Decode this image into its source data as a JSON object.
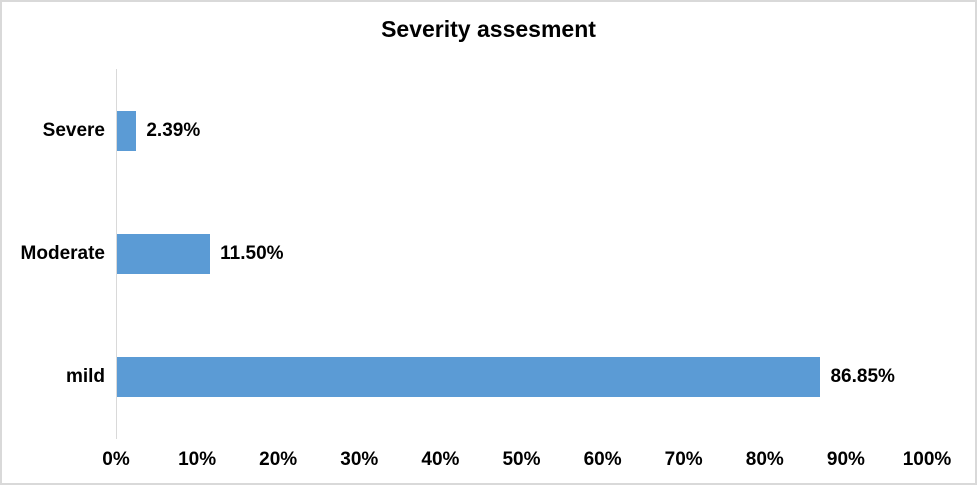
{
  "chart_data": {
    "type": "bar",
    "orientation": "horizontal",
    "title": "Severity assesment",
    "categories": [
      "Severe",
      "Moderate",
      "mild"
    ],
    "values": [
      2.39,
      11.5,
      86.85
    ],
    "data_labels": [
      "2.39%",
      "11.50%",
      "86.85%"
    ],
    "xlim": [
      0,
      100
    ],
    "x_ticks": [
      {
        "value": 0,
        "label": "0%"
      },
      {
        "value": 10,
        "label": "10%"
      },
      {
        "value": 20,
        "label": "20%"
      },
      {
        "value": 30,
        "label": "30%"
      },
      {
        "value": 40,
        "label": "40%"
      },
      {
        "value": 50,
        "label": "50%"
      },
      {
        "value": 60,
        "label": "60%"
      },
      {
        "value": 70,
        "label": "70%"
      },
      {
        "value": 80,
        "label": "80%"
      },
      {
        "value": 90,
        "label": "90%"
      },
      {
        "value": 100,
        "label": "100%"
      }
    ],
    "bar_color": "#5B9BD5",
    "axis_line_color": "#D9D9D9",
    "frame_border_color": "#D9D9D9",
    "text_color": "#000000",
    "grid": false,
    "legend": false
  }
}
